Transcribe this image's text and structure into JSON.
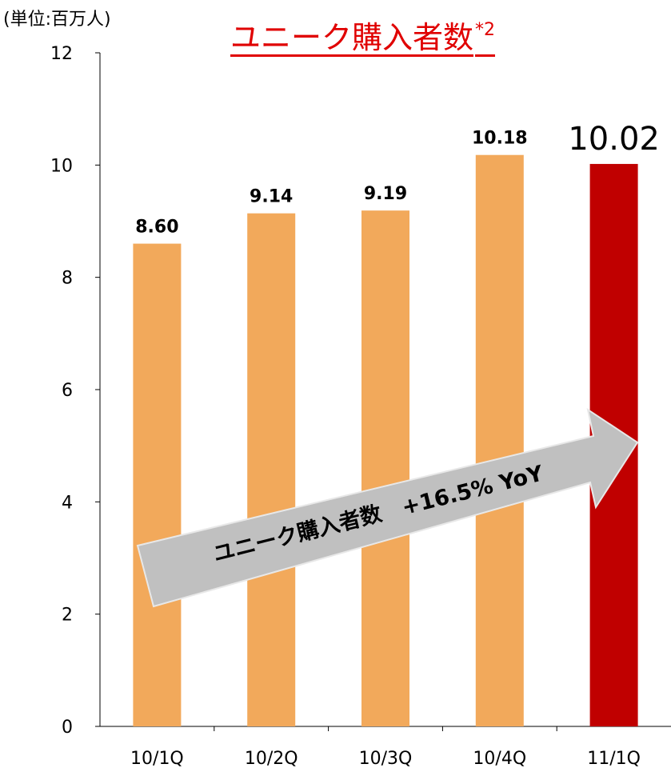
{
  "unit_label": "(単位:百万人)",
  "title": "ユニーク購入者数",
  "title_footnote": "*2",
  "annotation": "ユニーク購入者数　+16.5% YoY",
  "colors": {
    "bar": "#f2a95b",
    "highlight_bar": "#c00000",
    "title": "#e00000",
    "arrow_fill": "#c0c0c0",
    "arrow_edge": "#e8e8e8"
  },
  "chart_data": {
    "type": "bar",
    "categories": [
      "10/1Q",
      "10/2Q",
      "10/3Q",
      "10/4Q",
      "11/1Q"
    ],
    "values": [
      8.6,
      9.14,
      9.19,
      10.18,
      10.02
    ],
    "value_labels": [
      "8.60",
      "9.14",
      "9.19",
      "10.18",
      "10.02"
    ],
    "highlight_index": 4,
    "title": "ユニーク購入者数",
    "xlabel": "",
    "ylabel": "(単位:百万人)",
    "ylim": [
      0,
      12
    ],
    "yticks": [
      0,
      2,
      4,
      6,
      8,
      10,
      12
    ],
    "grid": false,
    "legend": "none"
  }
}
